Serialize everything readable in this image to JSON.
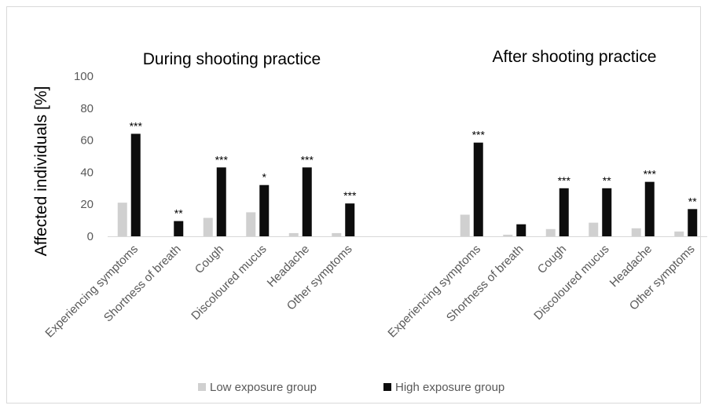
{
  "chart_data": {
    "type": "bar",
    "ylabel": "Affected individuals [%]",
    "ylim": [
      0,
      100
    ],
    "yticks": [
      "0",
      "20",
      "40",
      "60",
      "80",
      "100"
    ],
    "grid": false,
    "legend_position": "bottom",
    "colors": {
      "low": "#d0d0d0",
      "high": "#0d0d0d"
    },
    "series_names": [
      "Low exposure group",
      "High exposure group"
    ],
    "panels": [
      {
        "title": "During shooting practice",
        "categories": [
          "Experiencing symptoms",
          "Shortness of breath",
          "Cough",
          "Discoloured mucus",
          "Headache",
          "Other symptoms"
        ],
        "series": [
          {
            "name": "Low exposure group",
            "values": [
              21,
              0,
              11.5,
              15,
              2,
              2
            ]
          },
          {
            "name": "High exposure group",
            "values": [
              64,
              9.5,
              43,
              32,
              43,
              20.5
            ]
          }
        ],
        "significance": [
          "***",
          "**",
          "***",
          "*",
          "***",
          "***"
        ]
      },
      {
        "title": "After shooting practice",
        "categories": [
          "Experiencing symptoms",
          "Shortness of breath",
          "Cough",
          "Discoloured mucus",
          "Headache",
          "Other symptoms"
        ],
        "series": [
          {
            "name": "Low exposure group",
            "values": [
              13.5,
              1,
              4.5,
              8.5,
              5,
              3
            ]
          },
          {
            "name": "High exposure group",
            "values": [
              58.5,
              7.5,
              30,
              30,
              34,
              17
            ]
          }
        ],
        "significance": [
          "***",
          "",
          "***",
          "**",
          "***",
          "**"
        ]
      }
    ]
  }
}
